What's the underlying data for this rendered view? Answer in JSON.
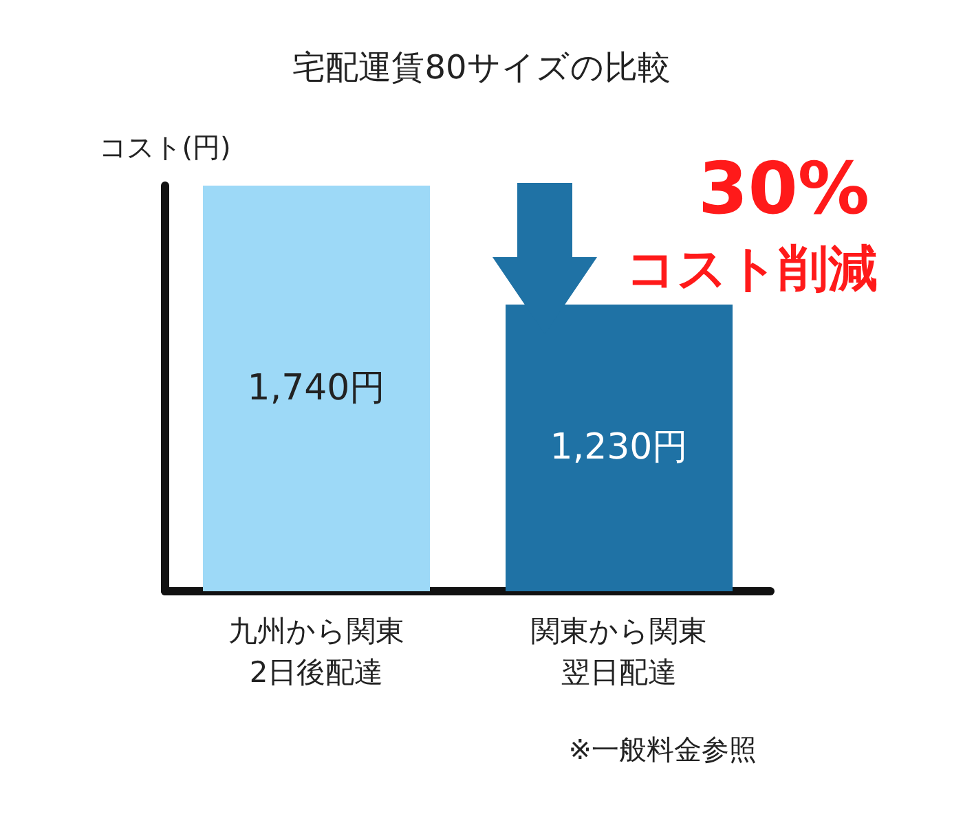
{
  "chart_data": {
    "type": "bar",
    "title": "宅配運賃80サイズの比較",
    "ylabel": "コスト(円)",
    "categories": [
      "九州から関東2日後配達",
      "関東から関東翌日配達"
    ],
    "values": [
      1740,
      1230
    ],
    "colors": [
      "#9dd9f7",
      "#1f72a5"
    ],
    "value_labels": [
      "1,740円",
      "1,230円"
    ],
    "tick_labels": "x",
    "annotations": [
      "30%",
      "コスト削減",
      "※一般料金参照"
    ]
  }
}
